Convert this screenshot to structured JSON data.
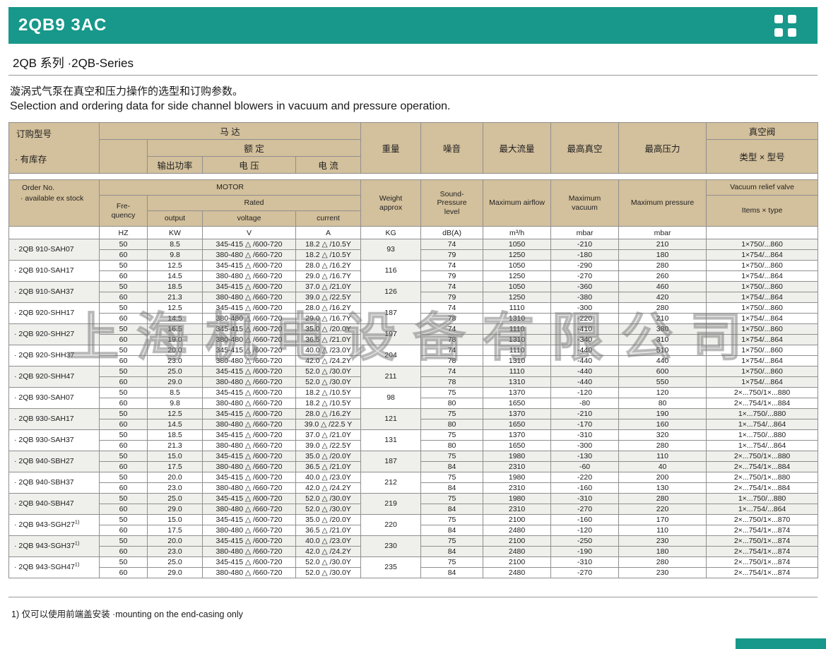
{
  "page": {
    "title": "2QB9 3AC",
    "series": "2QB 系列 ·2QB-Series",
    "desc_cn": "漩涡式气泵在真空和压力操作的选型和订购参数。",
    "desc_en": "Selection and ordering data for side channel blowers in vacuum and pressure operation.",
    "footnote": "1) 仅可以使用前端盖安装 ·mounting on the end-casing only",
    "watermark": "上海机电设备有限公司",
    "colors": {
      "teal": "#17988a",
      "header_tan": "#d3c09c",
      "line": "#8f8f8f",
      "row_shade": "#efefec"
    }
  },
  "table": {
    "cn": {
      "order": "订购型号",
      "stock": "· 有库存",
      "motor": "马  达",
      "rated": "额  定",
      "output": "输出功率",
      "voltage": "电  压",
      "current": "电  流",
      "weight": "重量",
      "noise": "噪音",
      "airflow": "最大流量",
      "vacuum": "最高真空",
      "pressure": "最高压力",
      "valve": "真空阀",
      "valve_type": "类型 × 型号"
    },
    "en": {
      "order": "Order No.",
      "stock": "· available ex stock",
      "motor": "MOTOR",
      "rated": "Rated",
      "frequency": "Fre-quency",
      "output": "output",
      "voltage": "voltage",
      "current": "current",
      "weight": "Weight approx",
      "noise": "Sound-Pressure level",
      "airflow": "Maximum airflow",
      "vacuum": "Maximum vacuum",
      "pressure": "Maximum pressure",
      "valve": "Vacuum relief valve",
      "valve_type": "Items × type"
    },
    "units": {
      "freq": "HZ",
      "output": "KW",
      "voltage": "V",
      "current": "A",
      "weight": "KG",
      "noise": "dB(A)",
      "airflow": "m³/h",
      "vacuum": "mbar",
      "pressure": "mbar"
    },
    "groups": [
      {
        "name": "· 2QB 910-SAH07",
        "sup": "",
        "weight": "93",
        "rows": [
          {
            "hz": "50",
            "kw": "8.5",
            "v": "345-415 △ /600-720",
            "a": "18.2 △ /10.5Y",
            "db": "74",
            "m3h": "1050",
            "vac": "-210",
            "pres": "210",
            "valve": "1×750/...860"
          },
          {
            "hz": "60",
            "kw": "9.8",
            "v": "380-480 △ /660-720",
            "a": "18.2 △ /10.5Y",
            "db": "79",
            "m3h": "1250",
            "vac": "-180",
            "pres": "180",
            "valve": "1×754/...864"
          }
        ]
      },
      {
        "name": "· 2QB 910-SAH17",
        "sup": "",
        "weight": "116",
        "rows": [
          {
            "hz": "50",
            "kw": "12.5",
            "v": "345-415 △ /600-720",
            "a": "28.0 △ /16.2Y",
            "db": "74",
            "m3h": "1050",
            "vac": "-290",
            "pres": "280",
            "valve": "1×750/...860"
          },
          {
            "hz": "60",
            "kw": "14.5",
            "v": "380-480 △ /660-720",
            "a": "29.0 △ /16.7Y",
            "db": "79",
            "m3h": "1250",
            "vac": "-270",
            "pres": "260",
            "valve": "1×754/...864"
          }
        ]
      },
      {
        "name": "· 2QB 910-SAH37",
        "sup": "",
        "weight": "126",
        "rows": [
          {
            "hz": "50",
            "kw": "18.5",
            "v": "345-415 △ /600-720",
            "a": "37.0 △ /21.0Y",
            "db": "74",
            "m3h": "1050",
            "vac": "-360",
            "pres": "460",
            "valve": "1×750/...860"
          },
          {
            "hz": "60",
            "kw": "21.3",
            "v": "380-480 △ /660-720",
            "a": "39.0 △ /22.5Y",
            "db": "79",
            "m3h": "1250",
            "vac": "-380",
            "pres": "420",
            "valve": "1×754/...864"
          }
        ]
      },
      {
        "name": "· 2QB 920-SHH17",
        "sup": "",
        "weight": "187",
        "rows": [
          {
            "hz": "50",
            "kw": "12.5",
            "v": "345-415 △ /600-720",
            "a": "28.0 △ /16.2Y",
            "db": "74",
            "m3h": "1110",
            "vac": "-300",
            "pres": "280",
            "valve": "1×750/...860"
          },
          {
            "hz": "60",
            "kw": "14.5",
            "v": "380-480 △ /660-720",
            "a": "29.0 △ /16.7Y",
            "db": "78",
            "m3h": "1310",
            "vac": "-220",
            "pres": "210",
            "valve": "1×754/...864"
          }
        ]
      },
      {
        "name": "· 2QB 920-SHH27",
        "sup": "",
        "weight": "197",
        "rows": [
          {
            "hz": "50",
            "kw": "16.5",
            "v": "345-415 △ /600-720",
            "a": "35.0 △ /20.0Y",
            "db": "74",
            "m3h": "1110",
            "vac": "-410",
            "pres": "380",
            "valve": "1×750/...860"
          },
          {
            "hz": "60",
            "kw": "19.0",
            "v": "380-480 △ /660-720",
            "a": "36.5 △ /21.0Y",
            "db": "78",
            "m3h": "1310",
            "vac": "-340",
            "pres": "310",
            "valve": "1×754/...864"
          }
        ]
      },
      {
        "name": "· 2QB 920-SHH37",
        "sup": "",
        "weight": "204",
        "rows": [
          {
            "hz": "50",
            "kw": "20.0",
            "v": "345-415 △ /600-720",
            "a": "40.0 △ /23.0Y",
            "db": "74",
            "m3h": "1110",
            "vac": "-440",
            "pres": "510",
            "valve": "1×750/...860"
          },
          {
            "hz": "60",
            "kw": "23.0",
            "v": "380-480 △ /660-720",
            "a": "42.0 △ /24.2Y",
            "db": "78",
            "m3h": "1310",
            "vac": "-440",
            "pres": "440",
            "valve": "1×754/...864"
          }
        ]
      },
      {
        "name": "· 2QB 920-SHH47",
        "sup": "",
        "weight": "211",
        "rows": [
          {
            "hz": "50",
            "kw": "25.0",
            "v": "345-415 △ /600-720",
            "a": "52.0 △ /30.0Y",
            "db": "74",
            "m3h": "1110",
            "vac": "-440",
            "pres": "600",
            "valve": "1×750/...860"
          },
          {
            "hz": "60",
            "kw": "29.0",
            "v": "380-480 △ /660-720",
            "a": "52.0 △ /30.0Y",
            "db": "78",
            "m3h": "1310",
            "vac": "-440",
            "pres": "550",
            "valve": "1×754/...864"
          }
        ]
      },
      {
        "name": "· 2QB 930-SAH07",
        "sup": "",
        "weight": "98",
        "rows": [
          {
            "hz": "50",
            "kw": "8.5",
            "v": "345-415 △ /600-720",
            "a": "18.2 △ /10.5Y",
            "db": "75",
            "m3h": "1370",
            "vac": "-120",
            "pres": "120",
            "valve": "2×...750/1×...880"
          },
          {
            "hz": "60",
            "kw": "9.8",
            "v": "380-480 △ /660-720",
            "a": "18.2 △ /10.5Y",
            "db": "80",
            "m3h": "1650",
            "vac": "-80",
            "pres": "80",
            "valve": "2×...754/1×...884"
          }
        ]
      },
      {
        "name": "· 2QB 930-SAH17",
        "sup": "",
        "weight": "121",
        "rows": [
          {
            "hz": "50",
            "kw": "12.5",
            "v": "345-415 △ /600-720",
            "a": "28.0 △ /16.2Y",
            "db": "75",
            "m3h": "1370",
            "vac": "-210",
            "pres": "190",
            "valve": "1×...750/...880"
          },
          {
            "hz": "60",
            "kw": "14.5",
            "v": "380-480 △ /660-720",
            "a": "39.0 △ /22.5 Y",
            "db": "80",
            "m3h": "1650",
            "vac": "-170",
            "pres": "160",
            "valve": "1×...754/...864"
          }
        ]
      },
      {
        "name": "· 2QB 930-SAH37",
        "sup": "",
        "weight": "131",
        "rows": [
          {
            "hz": "50",
            "kw": "18.5",
            "v": "345-415 △ /600-720",
            "a": "37.0 △ /21.0Y",
            "db": "75",
            "m3h": "1370",
            "vac": "-310",
            "pres": "320",
            "valve": "1×...750/...880"
          },
          {
            "hz": "60",
            "kw": "21.3",
            "v": "380-480 △ /660-720",
            "a": "39.0 △ /22.5Y",
            "db": "80",
            "m3h": "1650",
            "vac": "-300",
            "pres": "280",
            "valve": "1×...754/...864"
          }
        ]
      },
      {
        "name": "· 2QB 940-SBH27",
        "sup": "",
        "weight": "187",
        "rows": [
          {
            "hz": "50",
            "kw": "15.0",
            "v": "345-415 △ /600-720",
            "a": "35.0 △ /20.0Y",
            "db": "75",
            "m3h": "1980",
            "vac": "-130",
            "pres": "110",
            "valve": "2×...750/1×...880"
          },
          {
            "hz": "60",
            "kw": "17.5",
            "v": "380-480 △ /660-720",
            "a": "36.5 △ /21.0Y",
            "db": "84",
            "m3h": "2310",
            "vac": "-60",
            "pres": "40",
            "valve": "2×...754/1×...884"
          }
        ]
      },
      {
        "name": "· 2QB 940-SBH37",
        "sup": "",
        "weight": "212",
        "rows": [
          {
            "hz": "50",
            "kw": "20.0",
            "v": "345-415 △ /600-720",
            "a": "40.0 △ /23.0Y",
            "db": "75",
            "m3h": "1980",
            "vac": "-220",
            "pres": "200",
            "valve": "2×...750/1×...880"
          },
          {
            "hz": "60",
            "kw": "23.0",
            "v": "380-480 △ /660-720",
            "a": "42.0 △ /24.2Y",
            "db": "84",
            "m3h": "2310",
            "vac": "-160",
            "pres": "130",
            "valve": "2×...754/1×...884"
          }
        ]
      },
      {
        "name": "· 2QB 940-SBH47",
        "sup": "",
        "weight": "219",
        "rows": [
          {
            "hz": "50",
            "kw": "25.0",
            "v": "345-415 △ /600-720",
            "a": "52.0 △ /30.0Y",
            "db": "75",
            "m3h": "1980",
            "vac": "-310",
            "pres": "280",
            "valve": "1×...750/...880"
          },
          {
            "hz": "60",
            "kw": "29.0",
            "v": "380-480 △ /660-720",
            "a": "52.0 △ /30.0Y",
            "db": "84",
            "m3h": "2310",
            "vac": "-270",
            "pres": "220",
            "valve": "1×...754/...864"
          }
        ]
      },
      {
        "name": "· 2QB 943-SGH27",
        "sup": "1)",
        "weight": "220",
        "rows": [
          {
            "hz": "50",
            "kw": "15.0",
            "v": "345-415 △ /600-720",
            "a": "35.0 △ /20.0Y",
            "db": "75",
            "m3h": "2100",
            "vac": "-160",
            "pres": "170",
            "valve": "2×...750/1×...870"
          },
          {
            "hz": "60",
            "kw": "17.5",
            "v": "380-480 △ /660-720",
            "a": "36.5 △ /21.0Y",
            "db": "84",
            "m3h": "2480",
            "vac": "-120",
            "pres": "110",
            "valve": "2×...754/1×...874"
          }
        ]
      },
      {
        "name": "· 2QB 943-SGH37",
        "sup": "1)",
        "weight": "230",
        "rows": [
          {
            "hz": "50",
            "kw": "20.0",
            "v": "345-415 △ /600-720",
            "a": "40.0 △ /23.0Y",
            "db": "75",
            "m3h": "2100",
            "vac": "-250",
            "pres": "230",
            "valve": "2×...750/1×...874"
          },
          {
            "hz": "60",
            "kw": "23.0",
            "v": "380-480 △ /660-720",
            "a": "42.0 △ /24.2Y",
            "db": "84",
            "m3h": "2480",
            "vac": "-190",
            "pres": "180",
            "valve": "2×...754/1×...874"
          }
        ]
      },
      {
        "name": "· 2QB 943-SGH47",
        "sup": "1)",
        "weight": "235",
        "rows": [
          {
            "hz": "50",
            "kw": "25.0",
            "v": "345-415 △ /600-720",
            "a": "52.0 △ /30.0Y",
            "db": "75",
            "m3h": "2100",
            "vac": "-310",
            "pres": "280",
            "valve": "2×...750/1×...874"
          },
          {
            "hz": "60",
            "kw": "29.0",
            "v": "380-480 △ /660-720",
            "a": "52.0 △ /30.0Y",
            "db": "84",
            "m3h": "2480",
            "vac": "-270",
            "pres": "230",
            "valve": "2×...754/1×...874"
          }
        ]
      }
    ]
  }
}
